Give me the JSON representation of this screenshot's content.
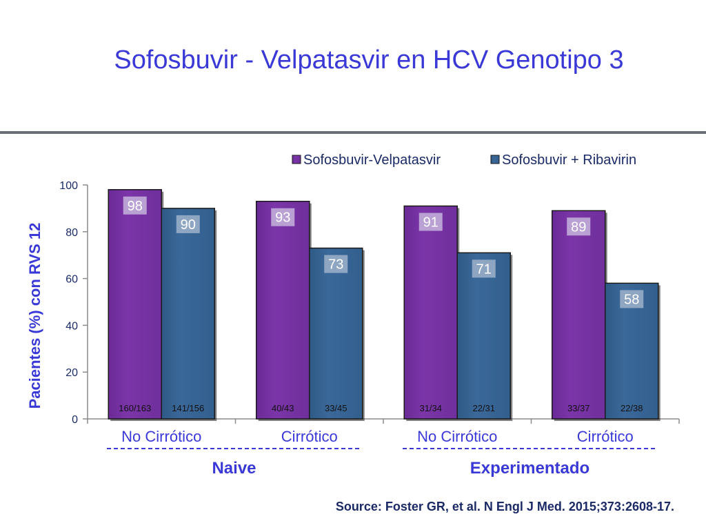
{
  "slide": {
    "title": "Sofosbuvir - Velpatasvir en HCV Genotipo 3",
    "source": "Source: Foster GR, et al. N Engl J Med. 2015;373:2608-17."
  },
  "colors": {
    "series_1": "#7b35a8",
    "series_2": "#3a6898",
    "value_box": "#b9a1d3",
    "value_box_2": "#8ea6c2",
    "title": "#3a39d8",
    "axis_text": "#3a39d8"
  },
  "chart_data": {
    "type": "bar",
    "title": "",
    "ylabel": "Pacientes  (%) con RVS 12",
    "ylim": [
      0,
      100
    ],
    "yticks": [
      0,
      20,
      40,
      60,
      80,
      100
    ],
    "categories": [
      "No Cirrótico",
      "Cirrótico",
      "No Cirrótico",
      "Cirrótico"
    ],
    "groups": [
      {
        "label": "Naive",
        "categories": [
          0,
          1
        ]
      },
      {
        "label": "Experimentado",
        "categories": [
          2,
          3
        ]
      }
    ],
    "legend_position": "top-right",
    "series": [
      {
        "name": "Sofosbuvir-Velpatasvir",
        "values": [
          98,
          93,
          91,
          89
        ],
        "counts": [
          "160/163",
          "40/43",
          "31/34",
          "33/37"
        ]
      },
      {
        "name": "Sofosbuvir + Ribavirin",
        "values": [
          90,
          73,
          71,
          58
        ],
        "counts": [
          "141/156",
          "33/45",
          "22/31",
          "22/38"
        ]
      }
    ]
  }
}
